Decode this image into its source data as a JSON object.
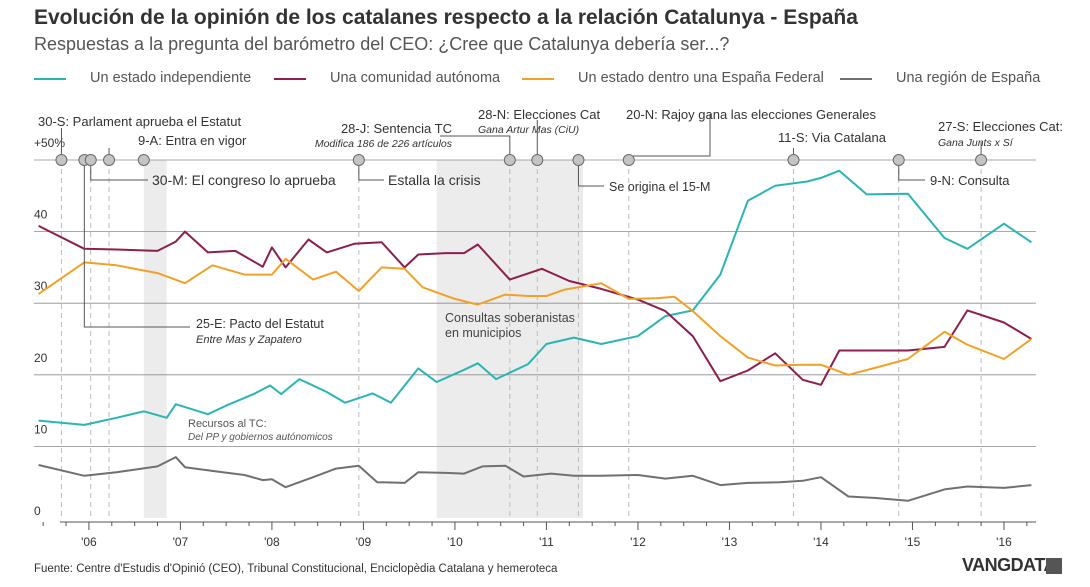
{
  "header": {
    "title": "Evolución de la opinión de los catalanes respecto a la relación Catalunya - España",
    "subtitle": "Respuestas a la pregunta del barómetro del CEO: ¿Cree que Catalunya debería ser...?"
  },
  "legend": [
    {
      "label": "Un estado independiente",
      "color": "#2ab5b3"
    },
    {
      "label": "Una comunidad autónoma",
      "color": "#8c1f4e"
    },
    {
      "label": "Un estado dentro una España Federal",
      "color": "#f2a127"
    },
    {
      "label": "Una región de España",
      "color": "#707070"
    }
  ],
  "footer": {
    "source": "Fuente: Centre d'Estudis d'Opinió (CEO), Tribunal Constitucional, Enciclopèdia Catalana y hemeroteca",
    "brand": "VANGDATA"
  },
  "chart_data": {
    "type": "line",
    "title": "Evolución de la opinión de los catalanes respecto a la relación Catalunya - España",
    "subtitle": "Respuestas a la pregunta del barómetro del CEO: ¿Cree que Catalunya debería ser...?",
    "xlabel": "",
    "ylabel": "",
    "x_unit": "year",
    "xlim": [
      2005.4,
      2016.35
    ],
    "ylim": [
      0,
      50
    ],
    "yticks": [
      {
        "value": 0,
        "label": "0"
      },
      {
        "value": 10,
        "label": "10"
      },
      {
        "value": 20,
        "label": "20"
      },
      {
        "value": 30,
        "label": "30"
      },
      {
        "value": 40,
        "label": "40"
      },
      {
        "value": 50,
        "label": "+50%"
      }
    ],
    "xticks": [
      {
        "value": 2006,
        "label": "'06"
      },
      {
        "value": 2007,
        "label": "'07"
      },
      {
        "value": 2008,
        "label": "'08"
      },
      {
        "value": 2009,
        "label": "'09"
      },
      {
        "value": 2010,
        "label": "'10"
      },
      {
        "value": 2011,
        "label": "'11"
      },
      {
        "value": 2012,
        "label": "'12"
      },
      {
        "value": 2013,
        "label": "'13"
      },
      {
        "value": 2014,
        "label": "'14"
      },
      {
        "value": 2015,
        "label": "'15"
      },
      {
        "value": 2016,
        "label": "'16"
      }
    ],
    "grid": true,
    "legend_position": "top",
    "shaded_periods": [
      {
        "start": 2006.6,
        "end": 2006.85
      },
      {
        "start": 2009.8,
        "end": 2011.4
      }
    ],
    "series": [
      {
        "name": "Un estado independiente",
        "color": "#2ab5b3",
        "points": [
          [
            2005.45,
            13.6
          ],
          [
            2005.95,
            13.0
          ],
          [
            2006.3,
            14.0
          ],
          [
            2006.6,
            14.9
          ],
          [
            2006.85,
            14.0
          ],
          [
            2006.95,
            15.9
          ],
          [
            2007.3,
            14.5
          ],
          [
            2007.5,
            15.7
          ],
          [
            2007.8,
            17.3
          ],
          [
            2007.98,
            18.5
          ],
          [
            2008.1,
            17.3
          ],
          [
            2008.3,
            19.4
          ],
          [
            2008.6,
            17.6
          ],
          [
            2008.8,
            16.1
          ],
          [
            2009.1,
            17.4
          ],
          [
            2009.3,
            16.1
          ],
          [
            2009.6,
            20.9
          ],
          [
            2009.8,
            19.0
          ],
          [
            2010.1,
            20.7
          ],
          [
            2010.25,
            21.6
          ],
          [
            2010.45,
            19.4
          ],
          [
            2010.8,
            21.5
          ],
          [
            2011.0,
            24.3
          ],
          [
            2011.3,
            25.2
          ],
          [
            2011.6,
            24.3
          ],
          [
            2012.0,
            25.4
          ],
          [
            2012.3,
            28.2
          ],
          [
            2012.6,
            29.0
          ],
          [
            2012.9,
            34.0
          ],
          [
            2013.2,
            44.3
          ],
          [
            2013.5,
            46.4
          ],
          [
            2013.85,
            47.0
          ],
          [
            2014.0,
            47.5
          ],
          [
            2014.2,
            48.5
          ],
          [
            2014.5,
            45.2
          ],
          [
            2014.95,
            45.3
          ],
          [
            2015.35,
            39.1
          ],
          [
            2015.6,
            37.6
          ],
          [
            2016.0,
            41.1
          ],
          [
            2016.3,
            38.5
          ]
        ]
      },
      {
        "name": "Una comunidad autónoma",
        "color": "#8c1f4e",
        "points": [
          [
            2005.45,
            40.8
          ],
          [
            2005.95,
            37.6
          ],
          [
            2006.3,
            37.5
          ],
          [
            2006.75,
            37.3
          ],
          [
            2006.95,
            38.6
          ],
          [
            2007.05,
            40.0
          ],
          [
            2007.3,
            37.1
          ],
          [
            2007.6,
            37.3
          ],
          [
            2007.9,
            35.1
          ],
          [
            2008.0,
            37.8
          ],
          [
            2008.15,
            35.0
          ],
          [
            2008.4,
            38.9
          ],
          [
            2008.6,
            37.1
          ],
          [
            2008.9,
            38.3
          ],
          [
            2009.2,
            38.5
          ],
          [
            2009.45,
            35.0
          ],
          [
            2009.6,
            36.8
          ],
          [
            2009.9,
            37.0
          ],
          [
            2010.1,
            37.0
          ],
          [
            2010.25,
            38.2
          ],
          [
            2010.6,
            33.3
          ],
          [
            2010.95,
            34.8
          ],
          [
            2011.25,
            33.1
          ],
          [
            2011.6,
            32.0
          ],
          [
            2012.0,
            30.5
          ],
          [
            2012.3,
            28.9
          ],
          [
            2012.6,
            25.4
          ],
          [
            2012.9,
            19.1
          ],
          [
            2013.2,
            20.6
          ],
          [
            2013.5,
            23.0
          ],
          [
            2013.8,
            19.3
          ],
          [
            2014.0,
            18.6
          ],
          [
            2014.2,
            23.4
          ],
          [
            2014.5,
            23.4
          ],
          [
            2014.95,
            23.4
          ],
          [
            2015.35,
            23.9
          ],
          [
            2015.6,
            29.0
          ],
          [
            2016.0,
            27.3
          ],
          [
            2016.3,
            25.0
          ]
        ]
      },
      {
        "name": "Un estado dentro una España Federal",
        "color": "#f2a127",
        "points": [
          [
            2005.45,
            31.3
          ],
          [
            2005.95,
            35.7
          ],
          [
            2006.3,
            35.3
          ],
          [
            2006.75,
            34.2
          ],
          [
            2007.05,
            32.8
          ],
          [
            2007.35,
            35.3
          ],
          [
            2007.7,
            34.0
          ],
          [
            2008.0,
            34.0
          ],
          [
            2008.15,
            36.2
          ],
          [
            2008.45,
            33.3
          ],
          [
            2008.7,
            34.4
          ],
          [
            2008.95,
            31.7
          ],
          [
            2009.2,
            35.0
          ],
          [
            2009.45,
            34.8
          ],
          [
            2009.65,
            32.2
          ],
          [
            2010.0,
            30.6
          ],
          [
            2010.25,
            29.8
          ],
          [
            2010.55,
            31.2
          ],
          [
            2010.8,
            31.0
          ],
          [
            2011.0,
            31.0
          ],
          [
            2011.2,
            31.9
          ],
          [
            2011.6,
            32.8
          ],
          [
            2011.9,
            30.6
          ],
          [
            2012.2,
            30.7
          ],
          [
            2012.4,
            30.9
          ],
          [
            2012.6,
            28.9
          ],
          [
            2012.9,
            25.4
          ],
          [
            2013.2,
            22.4
          ],
          [
            2013.5,
            21.3
          ],
          [
            2013.8,
            21.4
          ],
          [
            2014.0,
            21.4
          ],
          [
            2014.3,
            20.0
          ],
          [
            2014.6,
            21.0
          ],
          [
            2014.95,
            22.2
          ],
          [
            2015.35,
            26.0
          ],
          [
            2015.6,
            24.2
          ],
          [
            2016.0,
            22.2
          ],
          [
            2016.3,
            25.0
          ]
        ]
      },
      {
        "name": "Una región de España",
        "color": "#707070",
        "points": [
          [
            2005.45,
            7.4
          ],
          [
            2005.95,
            5.9
          ],
          [
            2006.3,
            6.4
          ],
          [
            2006.75,
            7.2
          ],
          [
            2006.95,
            8.5
          ],
          [
            2007.05,
            7.1
          ],
          [
            2007.4,
            6.5
          ],
          [
            2007.7,
            6.0
          ],
          [
            2007.9,
            5.3
          ],
          [
            2008.0,
            5.4
          ],
          [
            2008.15,
            4.3
          ],
          [
            2008.45,
            5.7
          ],
          [
            2008.7,
            6.9
          ],
          [
            2008.95,
            7.3
          ],
          [
            2009.15,
            5.0
          ],
          [
            2009.45,
            4.9
          ],
          [
            2009.6,
            6.4
          ],
          [
            2009.9,
            6.3
          ],
          [
            2010.1,
            6.2
          ],
          [
            2010.3,
            7.2
          ],
          [
            2010.55,
            7.3
          ],
          [
            2010.75,
            5.8
          ],
          [
            2011.05,
            6.2
          ],
          [
            2011.3,
            5.9
          ],
          [
            2011.6,
            5.9
          ],
          [
            2012.0,
            6.0
          ],
          [
            2012.3,
            5.5
          ],
          [
            2012.6,
            5.9
          ],
          [
            2012.9,
            4.6
          ],
          [
            2013.2,
            4.9
          ],
          [
            2013.55,
            5.0
          ],
          [
            2013.8,
            5.2
          ],
          [
            2014.0,
            5.7
          ],
          [
            2014.3,
            3.0
          ],
          [
            2014.6,
            2.8
          ],
          [
            2014.95,
            2.4
          ],
          [
            2015.35,
            4.0
          ],
          [
            2015.6,
            4.4
          ],
          [
            2016.0,
            4.2
          ],
          [
            2016.3,
            4.6
          ]
        ]
      }
    ],
    "events": [
      {
        "x": 2005.7,
        "label": "30-S: Parlament aprueba el Estatut",
        "note": ""
      },
      {
        "x": 2006.02,
        "label": "30-M: El congreso lo aprueba",
        "note": ""
      },
      {
        "x": 2006.22,
        "label": "9-A: Entra en vigor",
        "note": ""
      },
      {
        "x": 2006.05,
        "label": "25-E: Pacto del Estatut",
        "note": "Entre Mas y Zapatero"
      },
      {
        "x": 2006.6,
        "label": "Recursos al TC:",
        "note": "Del PP y gobiernos autónomicos"
      },
      {
        "x": 2008.95,
        "label": "Estalla la crisis",
        "note": ""
      },
      {
        "x": 2010.6,
        "label": "28-J: Sentencia TC",
        "note": "Modifica 186 de 226 artículos"
      },
      {
        "x": 2010.9,
        "label": "28-N: Elecciones Cat",
        "note": "Gana Artur Mas (CiU)"
      },
      {
        "x": 2011.35,
        "label": "Se origina el 15-M",
        "note": ""
      },
      {
        "x": 2011.9,
        "label": "20-N: Rajoy gana las elecciones Generales",
        "note": ""
      },
      {
        "x": 2013.7,
        "label": "11-S: Via Catalana",
        "note": ""
      },
      {
        "x": 2014.85,
        "label": "9-N: Consulta",
        "note": ""
      },
      {
        "x": 2015.75,
        "label": "27-S: Elecciones Cat:",
        "note": "Gana Junts x Sí"
      }
    ],
    "annotations": [
      {
        "x": 2009.8,
        "y": 26.5,
        "text": "Consultas soberanistas en municipios"
      }
    ]
  }
}
